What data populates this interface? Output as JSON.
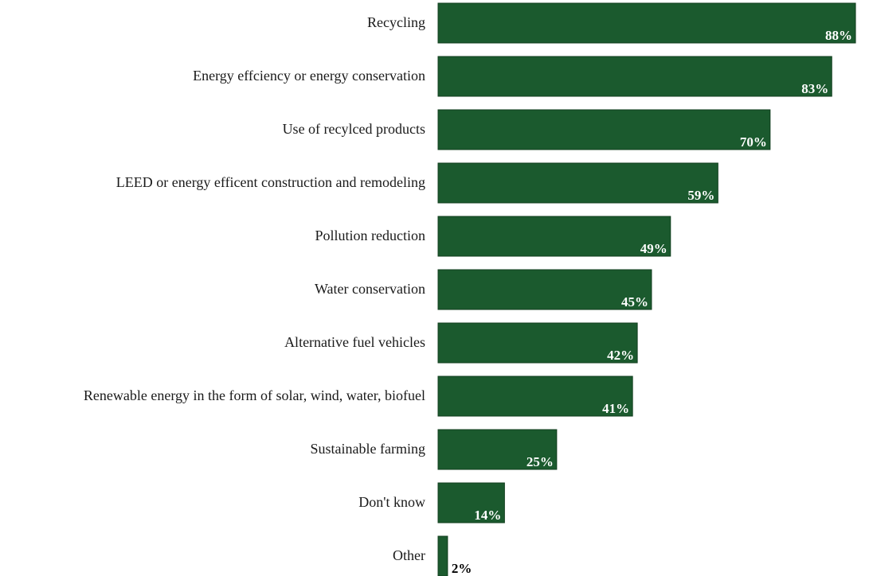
{
  "chart_data": {
    "type": "bar",
    "orientation": "horizontal",
    "title": "",
    "xlabel": "",
    "ylabel": "",
    "categories": [
      "Recycling",
      "Energy effciency or energy conservation",
      "Use of recylced products",
      "LEED or energy efficent construction and remodeling",
      "Pollution reduction",
      "Water conservation",
      "Alternative fuel vehicles",
      "Renewable energy in the form of solar, wind, water, biofuel",
      "Sustainable farming",
      "Don't know",
      "Other"
    ],
    "values": [
      88,
      83,
      70,
      59,
      49,
      45,
      42,
      41,
      25,
      14,
      2
    ],
    "value_labels": [
      "88%",
      "83%",
      "70%",
      "59%",
      "49%",
      "45%",
      "42%",
      "41%",
      "25%",
      "14%",
      "2%"
    ],
    "xlim": [
      0,
      100
    ],
    "grid": false,
    "legend": "none",
    "colors": {
      "bar": "#1b5a2e",
      "bar_border": "#103d1d",
      "label_inside": "#ffffff",
      "label_outside": "#000000",
      "category_text": "#1a1a1a"
    }
  }
}
